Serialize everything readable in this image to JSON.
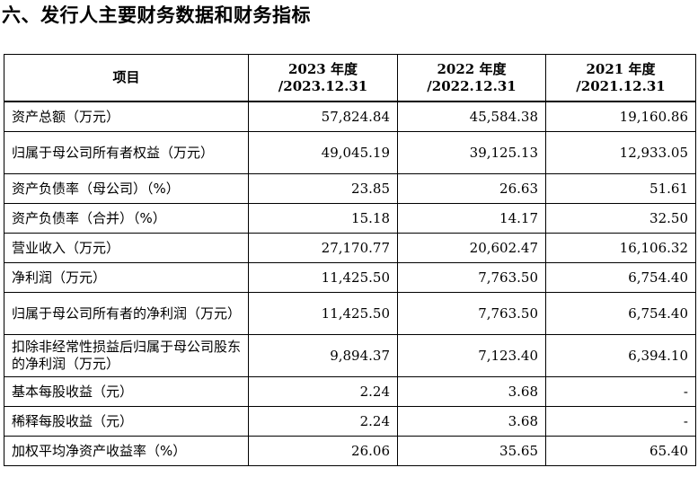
{
  "page": {
    "title": "六、发行人主要财务数据和财务指标"
  },
  "table": {
    "headers": [
      {
        "line1": "项目",
        "line2": ""
      },
      {
        "line1": "2023 年度",
        "line2": "/2023.12.31"
      },
      {
        "line1": "2022 年度",
        "line2": "/2022.12.31"
      },
      {
        "line1": "2021 年度",
        "line2": "/2021.12.31"
      }
    ],
    "rows": [
      {
        "item": "资产总额（万元）",
        "v2023": "57,824.84",
        "v2022": "45,584.38",
        "v2021": "19,160.86"
      },
      {
        "item": "归属于母公司所有者权益（万元）",
        "v2023": "49,045.19",
        "v2022": "39,125.13",
        "v2021": "12,933.05"
      },
      {
        "item": "资产负债率（母公司）（%）",
        "v2023": "23.85",
        "v2022": "26.63",
        "v2021": "51.61"
      },
      {
        "item": "资产负债率（合并）（%）",
        "v2023": "15.18",
        "v2022": "14.17",
        "v2021": "32.50"
      },
      {
        "item": "营业收入（万元）",
        "v2023": "27,170.77",
        "v2022": "20,602.47",
        "v2021": "16,106.32"
      },
      {
        "item": "净利润（万元）",
        "v2023": "11,425.50",
        "v2022": "7,763.50",
        "v2021": "6,754.40"
      },
      {
        "item": "归属于母公司所有者的净利润（万元）",
        "v2023": "11,425.50",
        "v2022": "7,763.50",
        "v2021": "6,754.40"
      },
      {
        "item": "扣除非经常性损益后归属于母公司股东的净利润（万元）",
        "v2023": "9,894.37",
        "v2022": "7,123.40",
        "v2021": "6,394.10"
      },
      {
        "item": "基本每股收益（元）",
        "v2023": "2.24",
        "v2022": "3.68",
        "v2021": "-"
      },
      {
        "item": "稀释每股收益（元）",
        "v2023": "2.24",
        "v2022": "3.68",
        "v2021": "-"
      },
      {
        "item": "加权平均净资产收益率（%）",
        "v2023": "26.06",
        "v2022": "35.65",
        "v2021": "65.40"
      }
    ]
  }
}
